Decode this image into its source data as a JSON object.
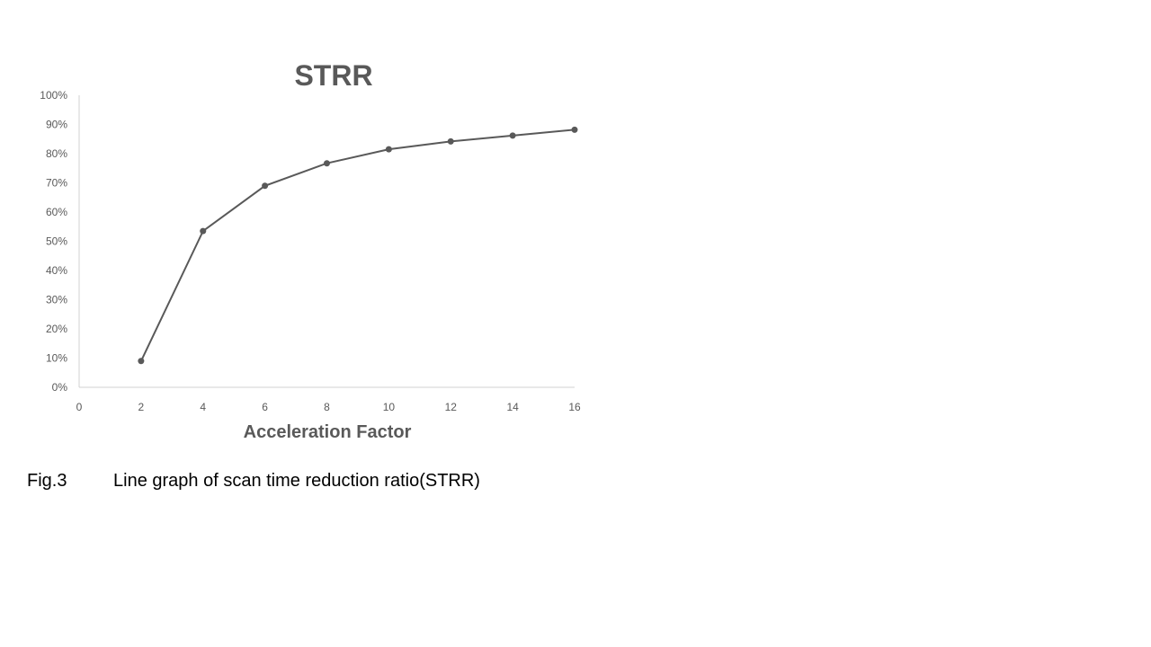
{
  "chart_data": {
    "type": "line",
    "title": "STRR",
    "xlabel": "Acceleration Factor",
    "ylabel": "",
    "x": [
      2,
      4,
      6,
      8,
      10,
      12,
      14,
      16
    ],
    "series": [
      {
        "values": [
          0.09,
          0.535,
          0.69,
          0.767,
          0.815,
          0.842,
          0.862,
          0.882
        ]
      }
    ],
    "xlim": [
      0,
      16
    ],
    "ylim": [
      0,
      1
    ],
    "xticks": [
      0,
      2,
      4,
      6,
      8,
      10,
      12,
      14,
      16
    ],
    "yticks": [
      0,
      0.1,
      0.2,
      0.3,
      0.4,
      0.5,
      0.6,
      0.7,
      0.8,
      0.9,
      1.0
    ],
    "ytick_labels": [
      "0%",
      "10%",
      "20%",
      "30%",
      "40%",
      "50%",
      "60%",
      "70%",
      "80%",
      "90%",
      "100%"
    ],
    "grid": false,
    "line_color": "#595959",
    "text_color": "#595959",
    "axis_color": "#d0d0d0"
  },
  "caption": {
    "label": "Fig.3",
    "text": "Line graph of scan time reduction ratio(STRR)"
  }
}
